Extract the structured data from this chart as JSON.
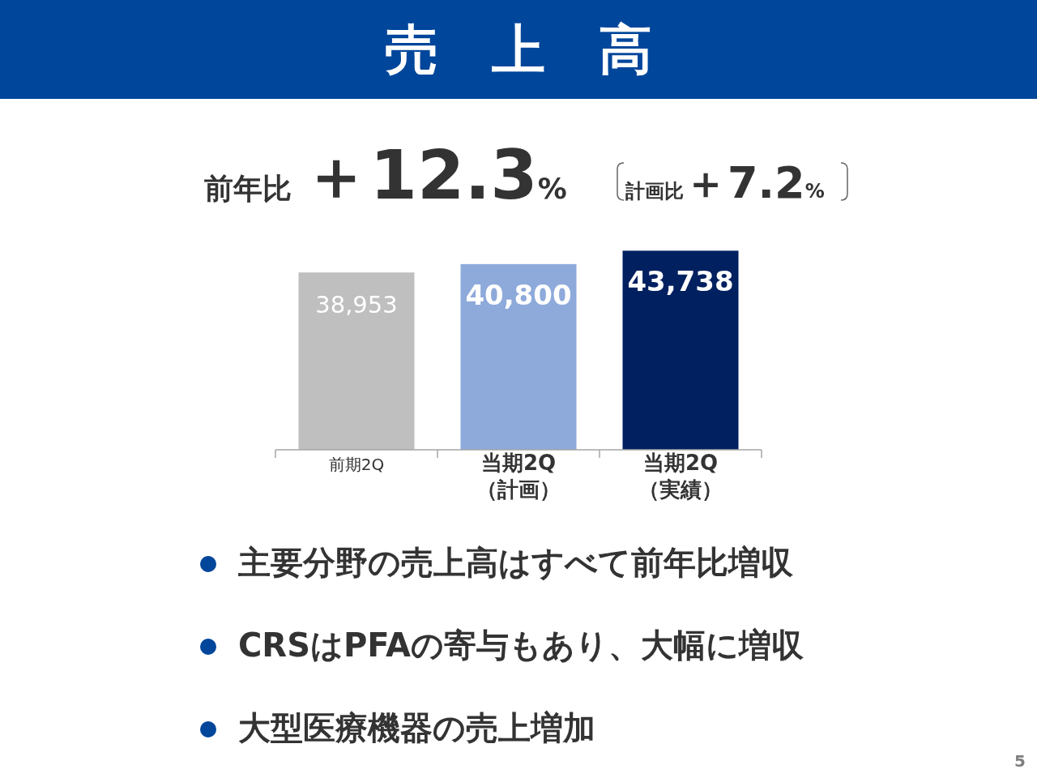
{
  "chart_data": {
    "type": "bar",
    "title": "売　上　高",
    "subtitle": "前年比 ＋12.3%",
    "categories": [
      "前期2Q",
      "当期2Q\n（計画）",
      "当期2Q\n（実績）"
    ],
    "values": [
      38953,
      40800,
      43738
    ],
    "colors": [
      "#bfbfbf",
      "#8eaadb",
      "#002060"
    ],
    "value_labels": [
      "38,953",
      "40,800",
      "43,738"
    ],
    "tick_labels": "x",
    "annotations": [
      "計画比＋7.2%",
      "主要分野の売上高はすべて前年比増収",
      "CRSはPFAの寄与もあり、大幅に増収",
      "大型医療機器の売上増加",
      "5"
    ]
  }
}
